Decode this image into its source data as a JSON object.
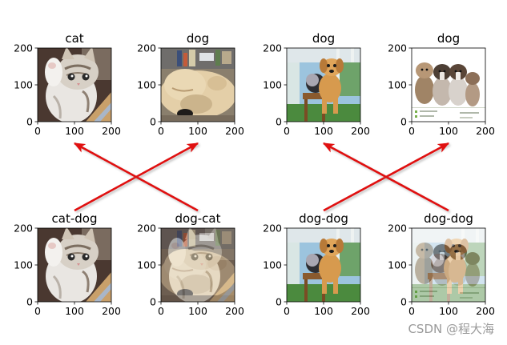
{
  "chart_data": {
    "type": "image-grid",
    "grid": {
      "rows": 2,
      "cols": 4
    },
    "axes": {
      "xlim": [
        0,
        200
      ],
      "ylim": [
        200,
        0
      ],
      "xticks": [
        0,
        100,
        200
      ],
      "yticks": [
        0,
        100,
        200
      ],
      "xtick_labels": [
        "0",
        "100",
        "200"
      ],
      "ytick_labels": [
        "0",
        "100",
        "200"
      ]
    },
    "panels": [
      {
        "title": "cat",
        "photo": "kitten-paw"
      },
      {
        "title": "dog",
        "photo": "sleeping-dog"
      },
      {
        "title": "dog",
        "photo": "puppy-on-stool"
      },
      {
        "title": "dog",
        "photo": "four-puppies"
      },
      {
        "title": "cat-dog",
        "photo": "kitten-paw",
        "overlay": null
      },
      {
        "title": "dog-cat",
        "photo": "sleeping-dog",
        "overlay": "kitten-paw"
      },
      {
        "title": "dog-dog",
        "photo": "puppy-on-stool",
        "overlay": null
      },
      {
        "title": "dog-dog",
        "photo": "four-puppies",
        "overlay": "puppy-on-stool"
      }
    ],
    "arrows": [
      {
        "from_panel": 4,
        "to_panel": 1
      },
      {
        "from_panel": 5,
        "to_panel": 0
      },
      {
        "from_panel": 6,
        "to_panel": 3
      },
      {
        "from_panel": 7,
        "to_panel": 2
      }
    ],
    "colors": {
      "arrow": "#e01010",
      "axis": "#000000"
    }
  },
  "watermark": "CSDN @程大海"
}
